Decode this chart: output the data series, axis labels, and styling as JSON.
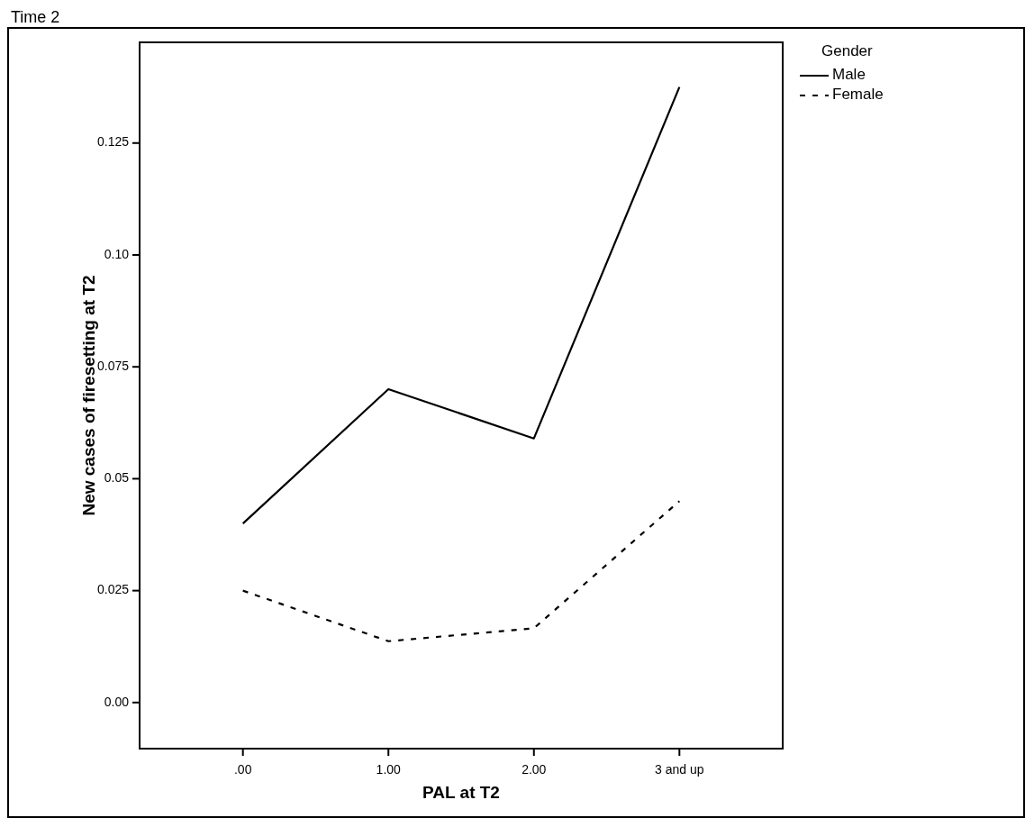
{
  "chart_data": {
    "type": "line",
    "title": "Time 2",
    "xlabel": "PAL at T2",
    "ylabel": "New cases of firesetting at T2",
    "legend_title": "Gender",
    "categories": [
      ".00",
      "1.00",
      "2.00",
      "3 and up"
    ],
    "series": [
      {
        "name": "Male",
        "color": "#000000",
        "values": [
          0.04,
          0.07,
          0.059,
          0.1375
        ],
        "line_style": "solid"
      },
      {
        "name": "Female",
        "color": "#000000",
        "values": [
          0.025,
          0.0137,
          0.0166,
          0.045
        ],
        "line_style": "dashed"
      }
    ],
    "ylim": [
      -0.0103,
      0.1475
    ],
    "yticks": [
      {
        "value": 0,
        "label": "0.00"
      },
      0.025,
      0.05,
      {
        "value": 0.075,
        "label": "0.075"
      },
      {
        "value": 0.1,
        "label": "0.10"
      },
      0.125
    ],
    "grid": false,
    "legend": "top right",
    "marker": "none"
  }
}
